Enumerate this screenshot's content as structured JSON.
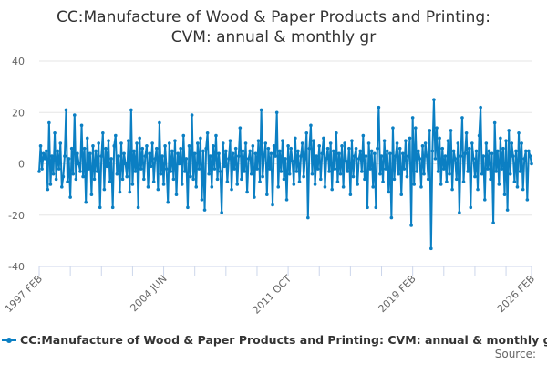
{
  "chart_data": {
    "type": "line",
    "title": "CC:Manufacture of Wood & Paper Products and Printing: CVM: annual & monthly gr",
    "title_lines": [
      "CC:Manufacture of Wood & Paper Products and Printing:",
      "CVM: annual & monthly gr"
    ],
    "x_start": "1997 FEB",
    "x_end": "2026 FEB",
    "x_frequency": "monthly",
    "x_tick_labels": [
      "1997 FEB",
      "2004 JUN",
      "2011 OCT",
      "2019 FEB",
      "2026 FEB"
    ],
    "y_tick_labels": [
      "40",
      "20",
      "0",
      "-20",
      "-40"
    ],
    "ylim": [
      -40,
      40
    ],
    "grid": true,
    "legend_position": "bottom",
    "color": "#0b7fc3",
    "series": [
      {
        "name": "CC:Manufacture of Wood & Paper Products and Printing: CVM: annual & monthly gr",
        "values": [
          -3,
          7,
          -2,
          4,
          2,
          5,
          -10,
          16,
          -8,
          3,
          -4,
          12,
          -6,
          5,
          -2,
          8,
          -9,
          -5,
          3,
          21,
          -7,
          2,
          -13,
          6,
          -4,
          19,
          -6,
          4,
          0,
          -3,
          15,
          -5,
          6,
          -15,
          10,
          -2,
          4,
          -12,
          7,
          -6,
          5,
          -3,
          8,
          -17,
          3,
          12,
          -10,
          6,
          -1,
          9,
          -7,
          2,
          -17,
          7,
          11,
          -4,
          3,
          -11,
          8,
          -6,
          4,
          0,
          -5,
          9,
          -11,
          21,
          -8,
          5,
          -3,
          8,
          -17,
          10,
          -2,
          6,
          -6,
          3,
          7,
          -9,
          4,
          -1,
          8,
          -7,
          2,
          6,
          -10,
          16,
          -4,
          3,
          -8,
          7,
          -2,
          -15,
          8,
          -3,
          5,
          -6,
          9,
          -12,
          4,
          0,
          6,
          -8,
          11,
          -3,
          2,
          -17,
          7,
          -5,
          19,
          -6,
          4,
          -9,
          8,
          -2,
          10,
          -14,
          5,
          -18,
          6,
          12,
          -4,
          3,
          -9,
          7,
          -2,
          11,
          -6,
          4,
          -3,
          -19,
          8,
          -1,
          5,
          -7,
          2,
          9,
          -10,
          4,
          -2,
          6,
          -8,
          3,
          14,
          -6,
          5,
          -3,
          8,
          -11,
          2,
          5,
          -4,
          7,
          -13,
          4,
          -2,
          9,
          -7,
          21,
          -5,
          3,
          8,
          -12,
          6,
          -2,
          4,
          -16,
          7,
          3,
          20,
          -9,
          5,
          -3,
          9,
          -6,
          2,
          -14,
          7,
          -4,
          6,
          1,
          -8,
          10,
          -3,
          5,
          -7,
          3,
          8,
          -5,
          2,
          12,
          -21,
          6,
          15,
          -4,
          9,
          -8,
          3,
          -2,
          7,
          -6,
          4,
          10,
          -9,
          2,
          6,
          -3,
          8,
          -10,
          5,
          -2,
          12,
          -7,
          4,
          -4,
          7,
          -9,
          8,
          1,
          -3,
          6,
          -12,
          9,
          -5,
          3,
          6,
          -8,
          2,
          5,
          -3,
          11,
          -6,
          3,
          -17,
          8,
          -2,
          5,
          -9,
          4,
          -17,
          6,
          22,
          -4,
          3,
          -7,
          9,
          -2,
          5,
          -11,
          4,
          -21,
          14,
          -6,
          3,
          8,
          -4,
          6,
          -12,
          4,
          -2,
          9,
          -5,
          3,
          10,
          -24,
          18,
          -8,
          14,
          -3,
          5,
          2,
          -9,
          7,
          -4,
          8,
          3,
          -6,
          13,
          -33,
          5,
          25,
          2,
          14,
          -3,
          10,
          -8,
          6,
          -2,
          3,
          -7,
          9,
          -4,
          13,
          -10,
          5,
          2,
          -6,
          8,
          -19,
          3,
          18,
          -7,
          4,
          12,
          -3,
          6,
          -17,
          8,
          2,
          -5,
          5,
          -10,
          11,
          22,
          -4,
          3,
          -14,
          8,
          -2,
          5,
          -6,
          4,
          -23,
          16,
          -3,
          5,
          -8,
          10,
          -2,
          6,
          -12,
          9,
          -18,
          13,
          -4,
          8,
          3,
          -7,
          5,
          -9,
          12,
          -3,
          8,
          -10,
          2,
          5,
          -14,
          5,
          3,
          0
        ]
      }
    ],
    "source_label": "Source:"
  }
}
